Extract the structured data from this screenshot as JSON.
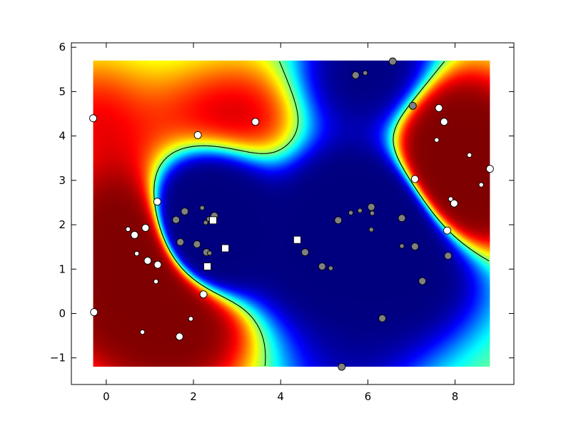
{
  "chart_data": {
    "type": "scatter",
    "title": "",
    "xlabel": "",
    "ylabel": "",
    "xlim": [
      -0.8,
      9.35
    ],
    "ylim": [
      -1.6,
      6.1
    ],
    "xticks": [
      0,
      2,
      4,
      6,
      8
    ],
    "yticks": [
      -1,
      0,
      1,
      2,
      3,
      4,
      5,
      6
    ],
    "xtick_labels": [
      "0",
      "2",
      "4",
      "6",
      "8"
    ],
    "ytick_labels": [
      "−1",
      "0",
      "1",
      "2",
      "3",
      "4",
      "5",
      "6"
    ],
    "background": {
      "kind": "decision-function-heatmap",
      "colormap": "jet",
      "extent": [
        -0.3,
        8.8,
        -1.2,
        5.7
      ],
      "contour_level": 0
    },
    "colors": {
      "class_0": "#ffffff",
      "class_1": "#808080",
      "edge": "#000000"
    },
    "series": [
      {
        "marker": "circle",
        "color": "#ffffff",
        "points": [
          {
            "x": -0.3,
            "y": 4.4,
            "support": true
          },
          {
            "x": 2.1,
            "y": 4.02,
            "support": true
          },
          {
            "x": 3.42,
            "y": 4.32,
            "support": true
          },
          {
            "x": 1.17,
            "y": 2.52,
            "support": true
          },
          {
            "x": 0.9,
            "y": 1.93,
            "support": true
          },
          {
            "x": 0.65,
            "y": 1.77,
            "support": true
          },
          {
            "x": 0.5,
            "y": 1.9,
            "support": false
          },
          {
            "x": 0.7,
            "y": 1.35,
            "support": false
          },
          {
            "x": 0.95,
            "y": 1.19,
            "support": true
          },
          {
            "x": 1.18,
            "y": 1.1,
            "support": true
          },
          {
            "x": 1.14,
            "y": 0.72,
            "support": false
          },
          {
            "x": 2.23,
            "y": 0.43,
            "support": true
          },
          {
            "x": -0.28,
            "y": 0.03,
            "support": true
          },
          {
            "x": 1.94,
            "y": -0.12,
            "support": false
          },
          {
            "x": 0.83,
            "y": -0.42,
            "support": false
          },
          {
            "x": 1.68,
            "y": -0.52,
            "support": true
          },
          {
            "x": 7.63,
            "y": 4.63,
            "support": true
          },
          {
            "x": 7.75,
            "y": 4.32,
            "support": true
          },
          {
            "x": 7.58,
            "y": 3.91,
            "support": false
          },
          {
            "x": 8.33,
            "y": 3.57,
            "support": false
          },
          {
            "x": 8.8,
            "y": 3.26,
            "support": true
          },
          {
            "x": 7.08,
            "y": 3.03,
            "support": true
          },
          {
            "x": 8.6,
            "y": 2.9,
            "support": false
          },
          {
            "x": 7.9,
            "y": 2.58,
            "support": false
          },
          {
            "x": 7.98,
            "y": 2.48,
            "support": true
          },
          {
            "x": 7.82,
            "y": 1.87,
            "support": true
          }
        ]
      },
      {
        "marker": "circle",
        "color": "#808080",
        "points": [
          {
            "x": 6.57,
            "y": 5.68,
            "support": true
          },
          {
            "x": 5.72,
            "y": 5.37,
            "support": true
          },
          {
            "x": 5.94,
            "y": 5.42,
            "support": false
          },
          {
            "x": 7.03,
            "y": 4.68,
            "support": true
          },
          {
            "x": 1.8,
            "y": 2.3,
            "support": true
          },
          {
            "x": 2.2,
            "y": 2.38,
            "support": false
          },
          {
            "x": 1.6,
            "y": 2.11,
            "support": true
          },
          {
            "x": 2.48,
            "y": 2.2,
            "support": true
          },
          {
            "x": 2.35,
            "y": 2.13,
            "support": false
          },
          {
            "x": 2.28,
            "y": 2.05,
            "support": false
          },
          {
            "x": 1.7,
            "y": 1.61,
            "support": true
          },
          {
            "x": 2.08,
            "y": 1.56,
            "support": true
          },
          {
            "x": 2.3,
            "y": 1.38,
            "support": true
          },
          {
            "x": 2.37,
            "y": 1.36,
            "support": false
          },
          {
            "x": 5.32,
            "y": 2.1,
            "support": true
          },
          {
            "x": 5.61,
            "y": 2.27,
            "support": false
          },
          {
            "x": 5.82,
            "y": 2.32,
            "support": false
          },
          {
            "x": 6.08,
            "y": 2.4,
            "support": true
          },
          {
            "x": 6.1,
            "y": 2.26,
            "support": false
          },
          {
            "x": 6.78,
            "y": 2.15,
            "support": true
          },
          {
            "x": 6.08,
            "y": 1.89,
            "support": false
          },
          {
            "x": 6.78,
            "y": 1.52,
            "support": false
          },
          {
            "x": 7.08,
            "y": 1.51,
            "support": true
          },
          {
            "x": 4.56,
            "y": 1.38,
            "support": true
          },
          {
            "x": 7.84,
            "y": 1.3,
            "support": true
          },
          {
            "x": 4.95,
            "y": 1.06,
            "support": true
          },
          {
            "x": 5.15,
            "y": 1.02,
            "support": false
          },
          {
            "x": 7.25,
            "y": 0.73,
            "support": true
          },
          {
            "x": 6.33,
            "y": -0.11,
            "support": true
          },
          {
            "x": 5.4,
            "y": -1.2,
            "support": true
          }
        ]
      },
      {
        "marker": "square",
        "color": "#ffffff",
        "points": [
          {
            "x": 2.45,
            "y": 2.1
          },
          {
            "x": 2.73,
            "y": 1.47
          },
          {
            "x": 4.38,
            "y": 1.66
          },
          {
            "x": 2.32,
            "y": 1.06
          }
        ]
      }
    ]
  }
}
